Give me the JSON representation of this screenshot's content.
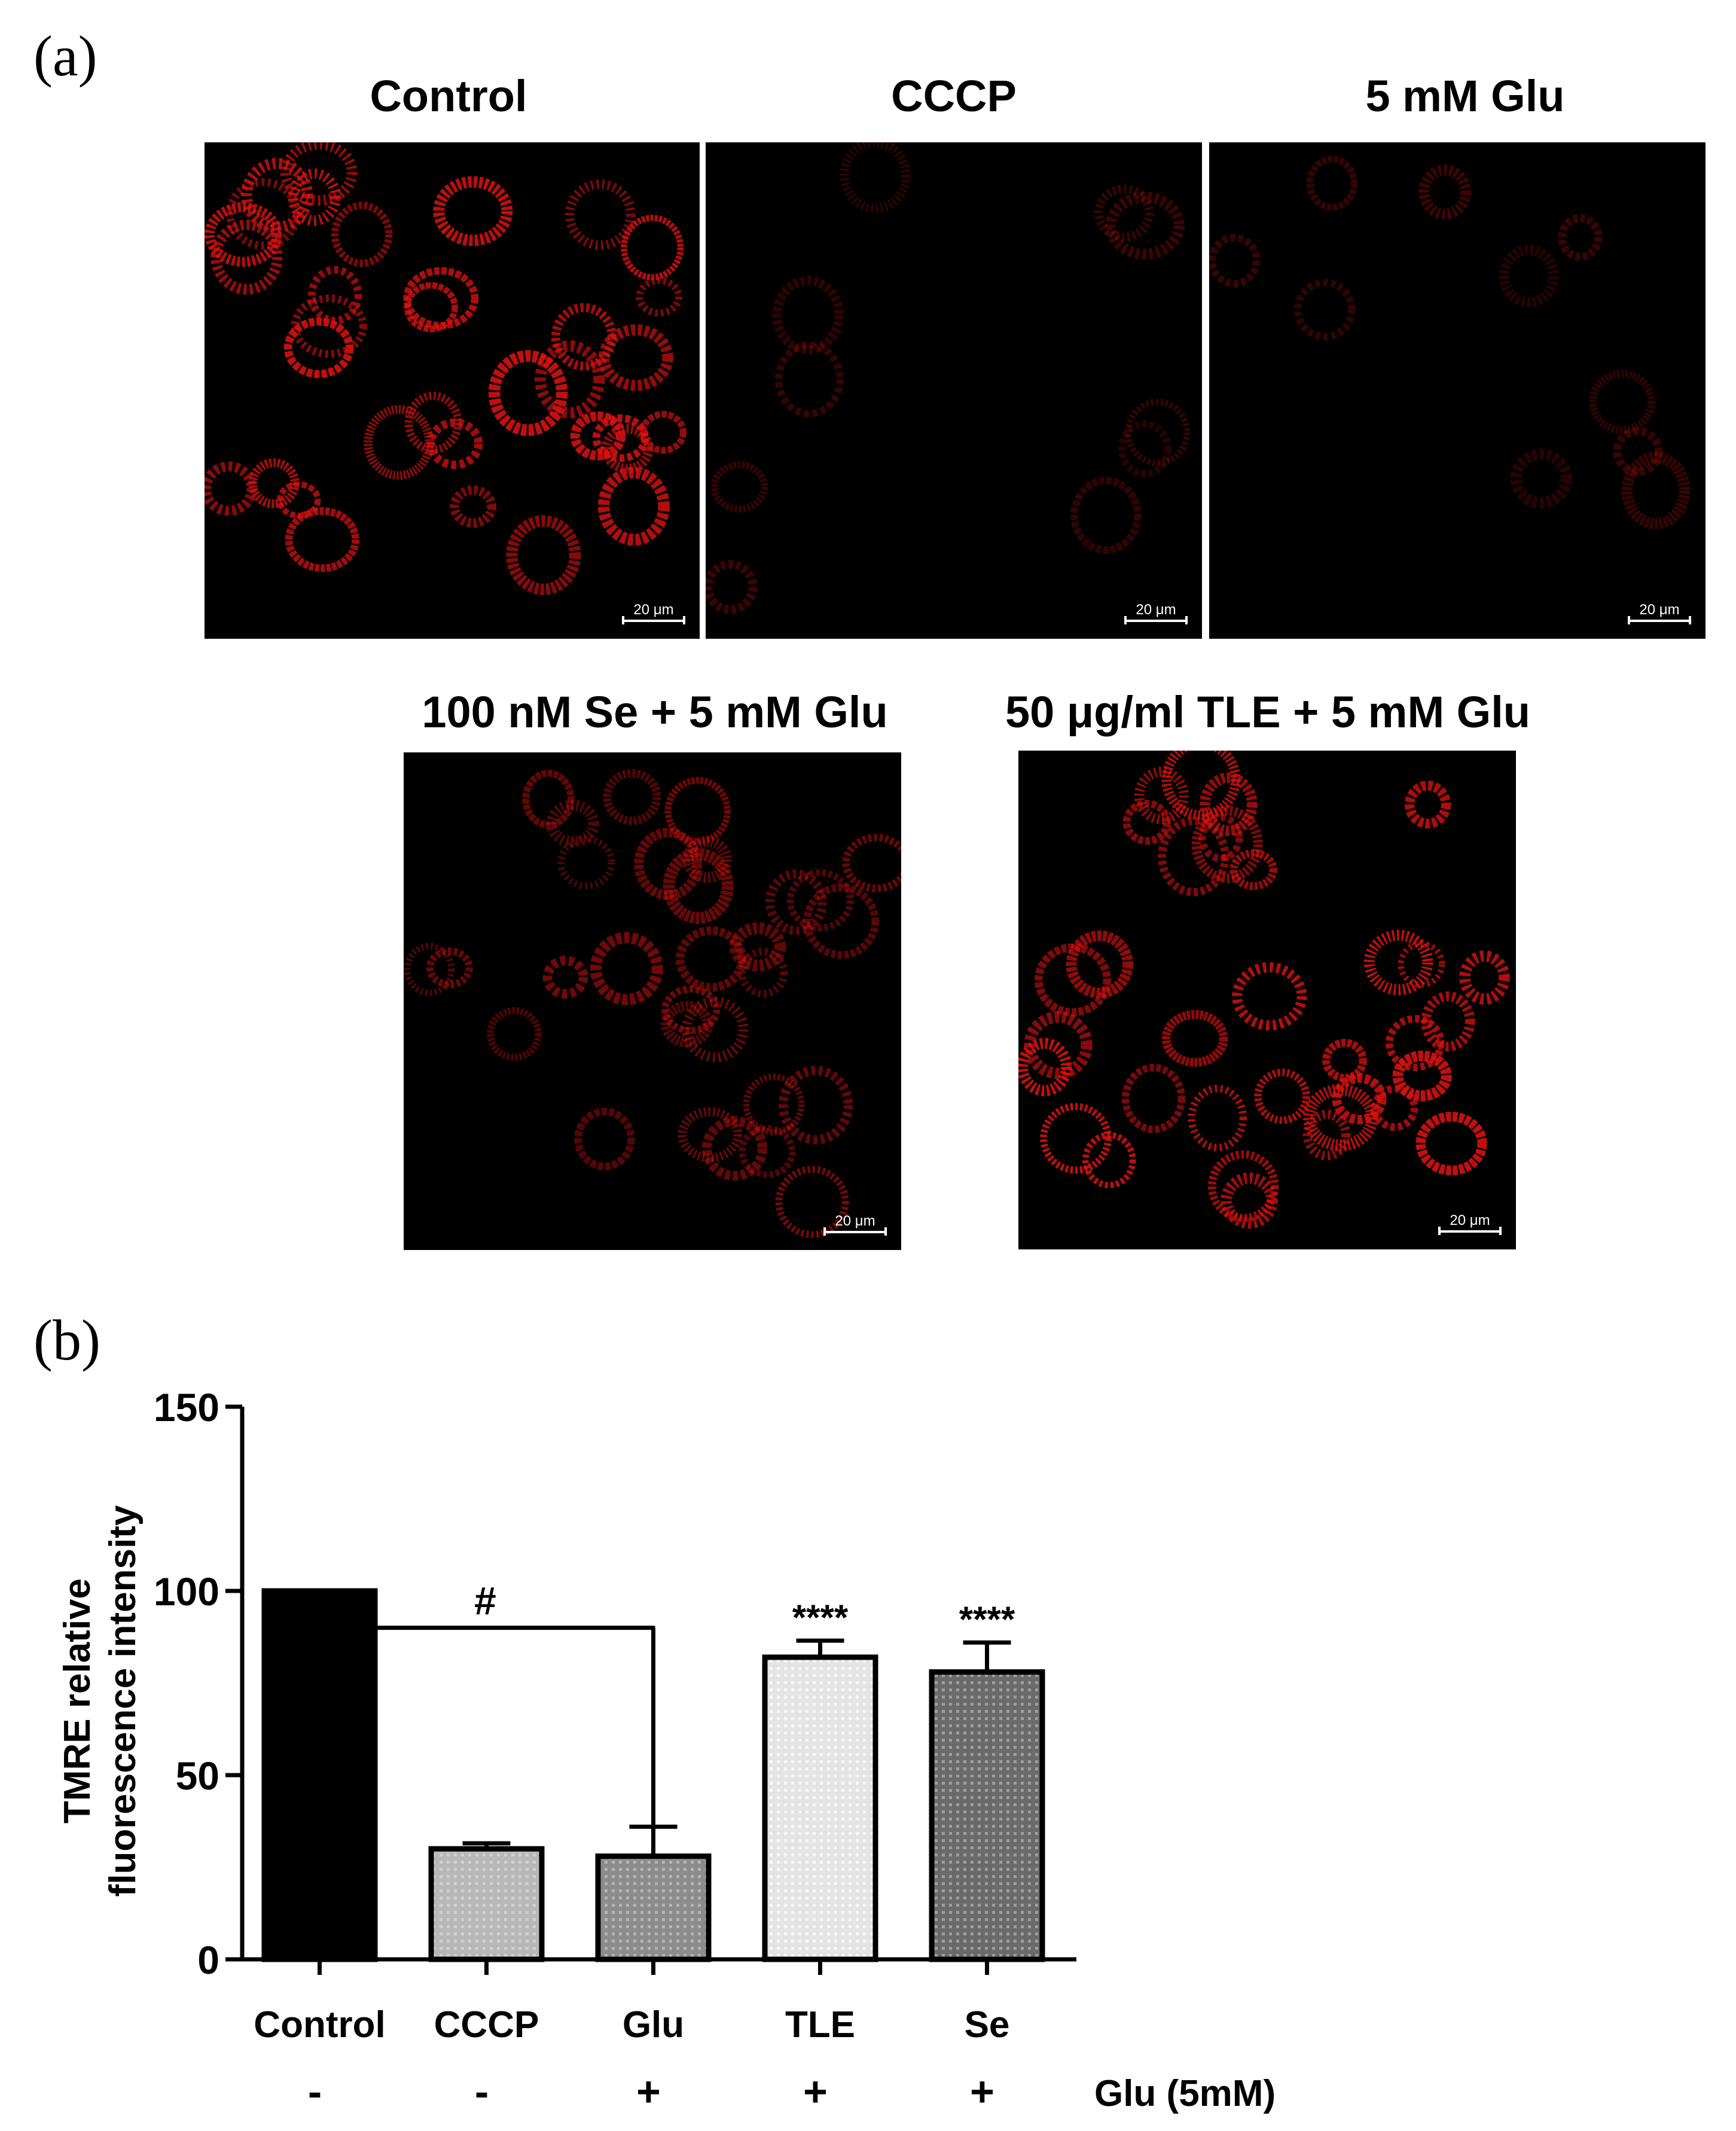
{
  "panel_a_label": "(a)",
  "panel_b_label": "(b)",
  "images": [
    {
      "title": "Control",
      "scale": "20 μm",
      "intensity": "high"
    },
    {
      "title": "CCCP",
      "scale": "20 μm",
      "intensity": "very-low"
    },
    {
      "title": "5 mM Glu",
      "scale": "20 μm",
      "intensity": "very-low"
    },
    {
      "title": "100 nM Se + 5 mM Glu",
      "scale": "20 μm",
      "intensity": "medium"
    },
    {
      "title": "50 μg/ml TLE + 5 mM Glu",
      "scale": "20 μm",
      "intensity": "high"
    }
  ],
  "chart_data": {
    "type": "bar",
    "categories": [
      "Control",
      "CCCP",
      "Glu",
      "TLE",
      "Se"
    ],
    "values": [
      100,
      30,
      28,
      82,
      78
    ],
    "errors": [
      0,
      1.5,
      8,
      4.5,
      8
    ],
    "annotations": [
      "",
      "",
      "",
      "****",
      "****"
    ],
    "glu_row": [
      "-",
      "-",
      "+",
      "+",
      "+"
    ],
    "glu_row_label": "Glu (5mM)",
    "significance_label": "#",
    "ylabel_line1": "TMRE relative",
    "ylabel_line2": "fluorescence intensity",
    "yticks": [
      0,
      50,
      100,
      150
    ],
    "ylim": [
      0,
      150
    ],
    "bar_fills": [
      "#000000",
      "#b8b8b8",
      "#8c8c8c",
      "#e4e4e4",
      "#6a6a6a"
    ]
  }
}
